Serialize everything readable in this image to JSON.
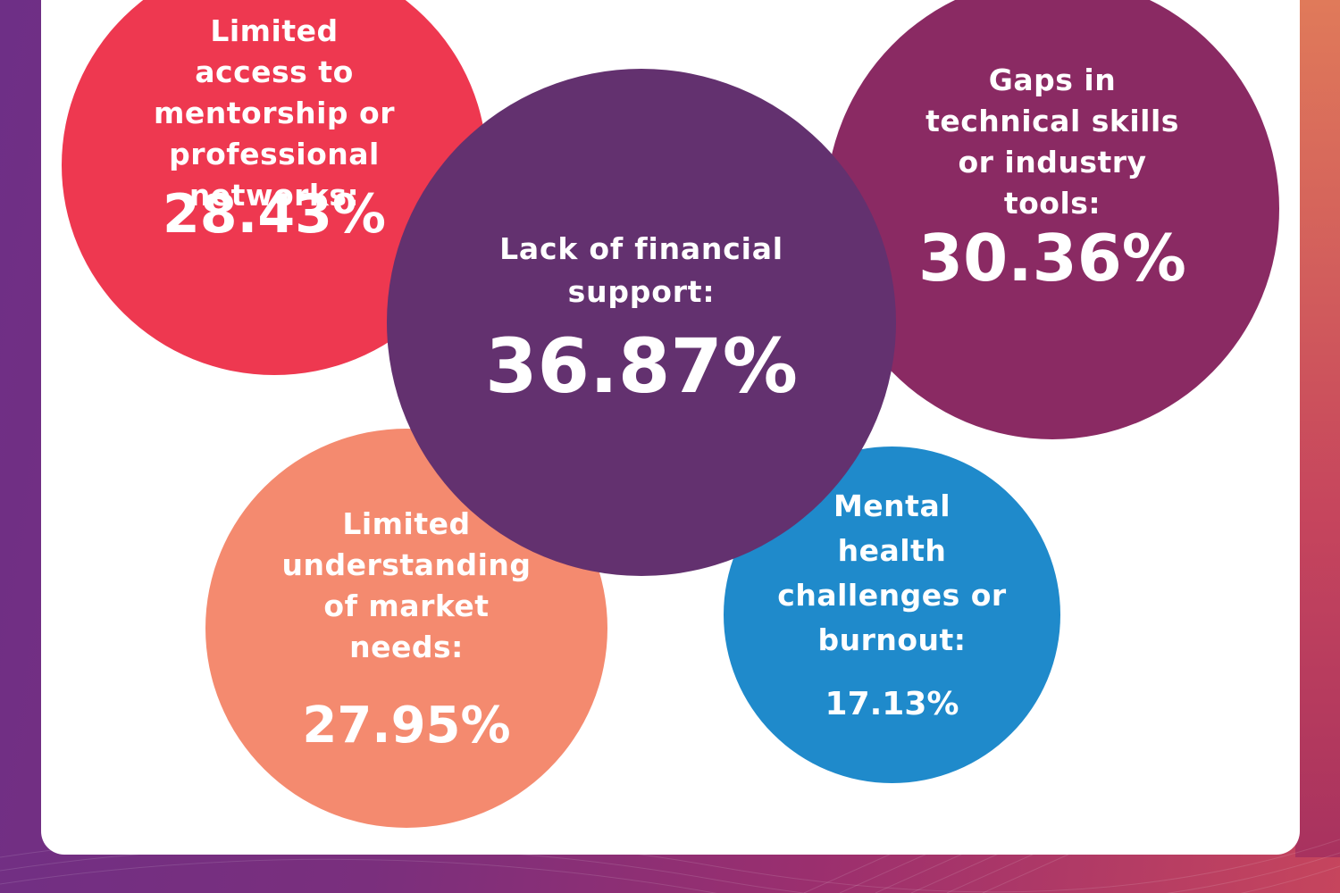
{
  "chart_data": {
    "type": "bubble",
    "items": [
      {
        "id": "mentorship",
        "label": "Limited\naccess to\nmentorship or\nprofessional\nnetworks:",
        "value": 28.43,
        "display": "28.43%",
        "color": "#ee3850"
      },
      {
        "id": "technical",
        "label": "Gaps in\ntechnical skills\nor industry\ntools:",
        "value": 30.36,
        "display": "30.36%",
        "color": "#8a2a63"
      },
      {
        "id": "market",
        "label": "Limited\nunderstanding\nof market\nneeds:",
        "value": 27.95,
        "display": "27.95%",
        "color": "#f48a6f"
      },
      {
        "id": "mental",
        "label": "Mental\nhealth\nchallenges or\nburnout:",
        "value": 17.13,
        "display": "17.13%",
        "color": "#1f8acb"
      },
      {
        "id": "financial",
        "label": "Lack of financial\nsupport:",
        "value": 36.87,
        "display": "36.87%",
        "color": "#63316f"
      }
    ]
  }
}
